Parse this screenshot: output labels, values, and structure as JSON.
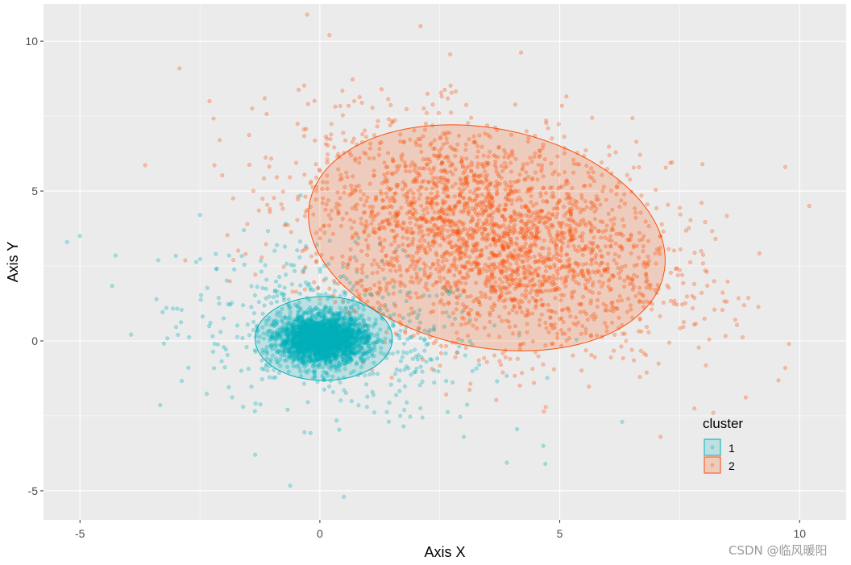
{
  "chart_data": {
    "type": "scatter",
    "title": "",
    "xlabel": "Axis X",
    "ylabel": "Axis Y",
    "xlim": [
      -5.76,
      10.97
    ],
    "ylim": [
      -5.97,
      11.24
    ],
    "xticks": [
      -5,
      0,
      5,
      10
    ],
    "yticks": [
      -5,
      0,
      5,
      10
    ],
    "xtick_labels": [
      "-5",
      "0",
      "5",
      "10"
    ],
    "ytick_labels": [
      "-5",
      "0",
      "5",
      "10"
    ],
    "grid": true,
    "legend": {
      "title": "cluster",
      "placement": "bottom-right",
      "entries": [
        "1",
        "2"
      ]
    },
    "series": [
      {
        "name": "1",
        "color": "#00AFBB",
        "generated": {
          "core": {
            "n": 2600,
            "mean": [
              0.05,
              0.05
            ],
            "sd": [
              0.45,
              0.38
            ]
          },
          "spread": {
            "n": 550,
            "mean": [
              0.3,
              0.3
            ],
            "sd": [
              1.6,
              1.4
            ],
            "corr": -0.3
          }
        },
        "outliers": [
          [
            -5.0,
            3.5
          ],
          [
            -3.2,
            1.1
          ],
          [
            -2.5,
            4.2
          ],
          [
            0.5,
            -5.2
          ],
          [
            3.0,
            -3.2
          ],
          [
            4.7,
            -4.1
          ],
          [
            6.3,
            -2.7
          ],
          [
            -1.6,
            -2.2
          ]
        ],
        "ellipse": {
          "center": [
            0.08,
            0.08
          ],
          "semi_axes": [
            1.43,
            1.4
          ],
          "angle_deg": 0
        }
      },
      {
        "name": "2",
        "color": "#FC4E07",
        "generated": {
          "n": 2600,
          "mean": [
            3.5,
            3.5
          ],
          "sd": [
            1.9,
            1.85
          ],
          "corr": -0.3
        },
        "outliers": [
          [
            0.2,
            10.2
          ],
          [
            2.1,
            10.5
          ],
          [
            -2.3,
            8.0
          ],
          [
            9.7,
            5.8
          ],
          [
            10.2,
            4.5
          ],
          [
            9.7,
            -0.9
          ],
          [
            7.1,
            -3.2
          ],
          [
            8.2,
            -2.4
          ]
        ],
        "ellipse": {
          "center": [
            3.48,
            3.44
          ],
          "semi_axes": [
            4.1,
            3.35
          ],
          "angle_deg": -47
        }
      }
    ]
  },
  "watermark": "CSDN @临风暖阳"
}
